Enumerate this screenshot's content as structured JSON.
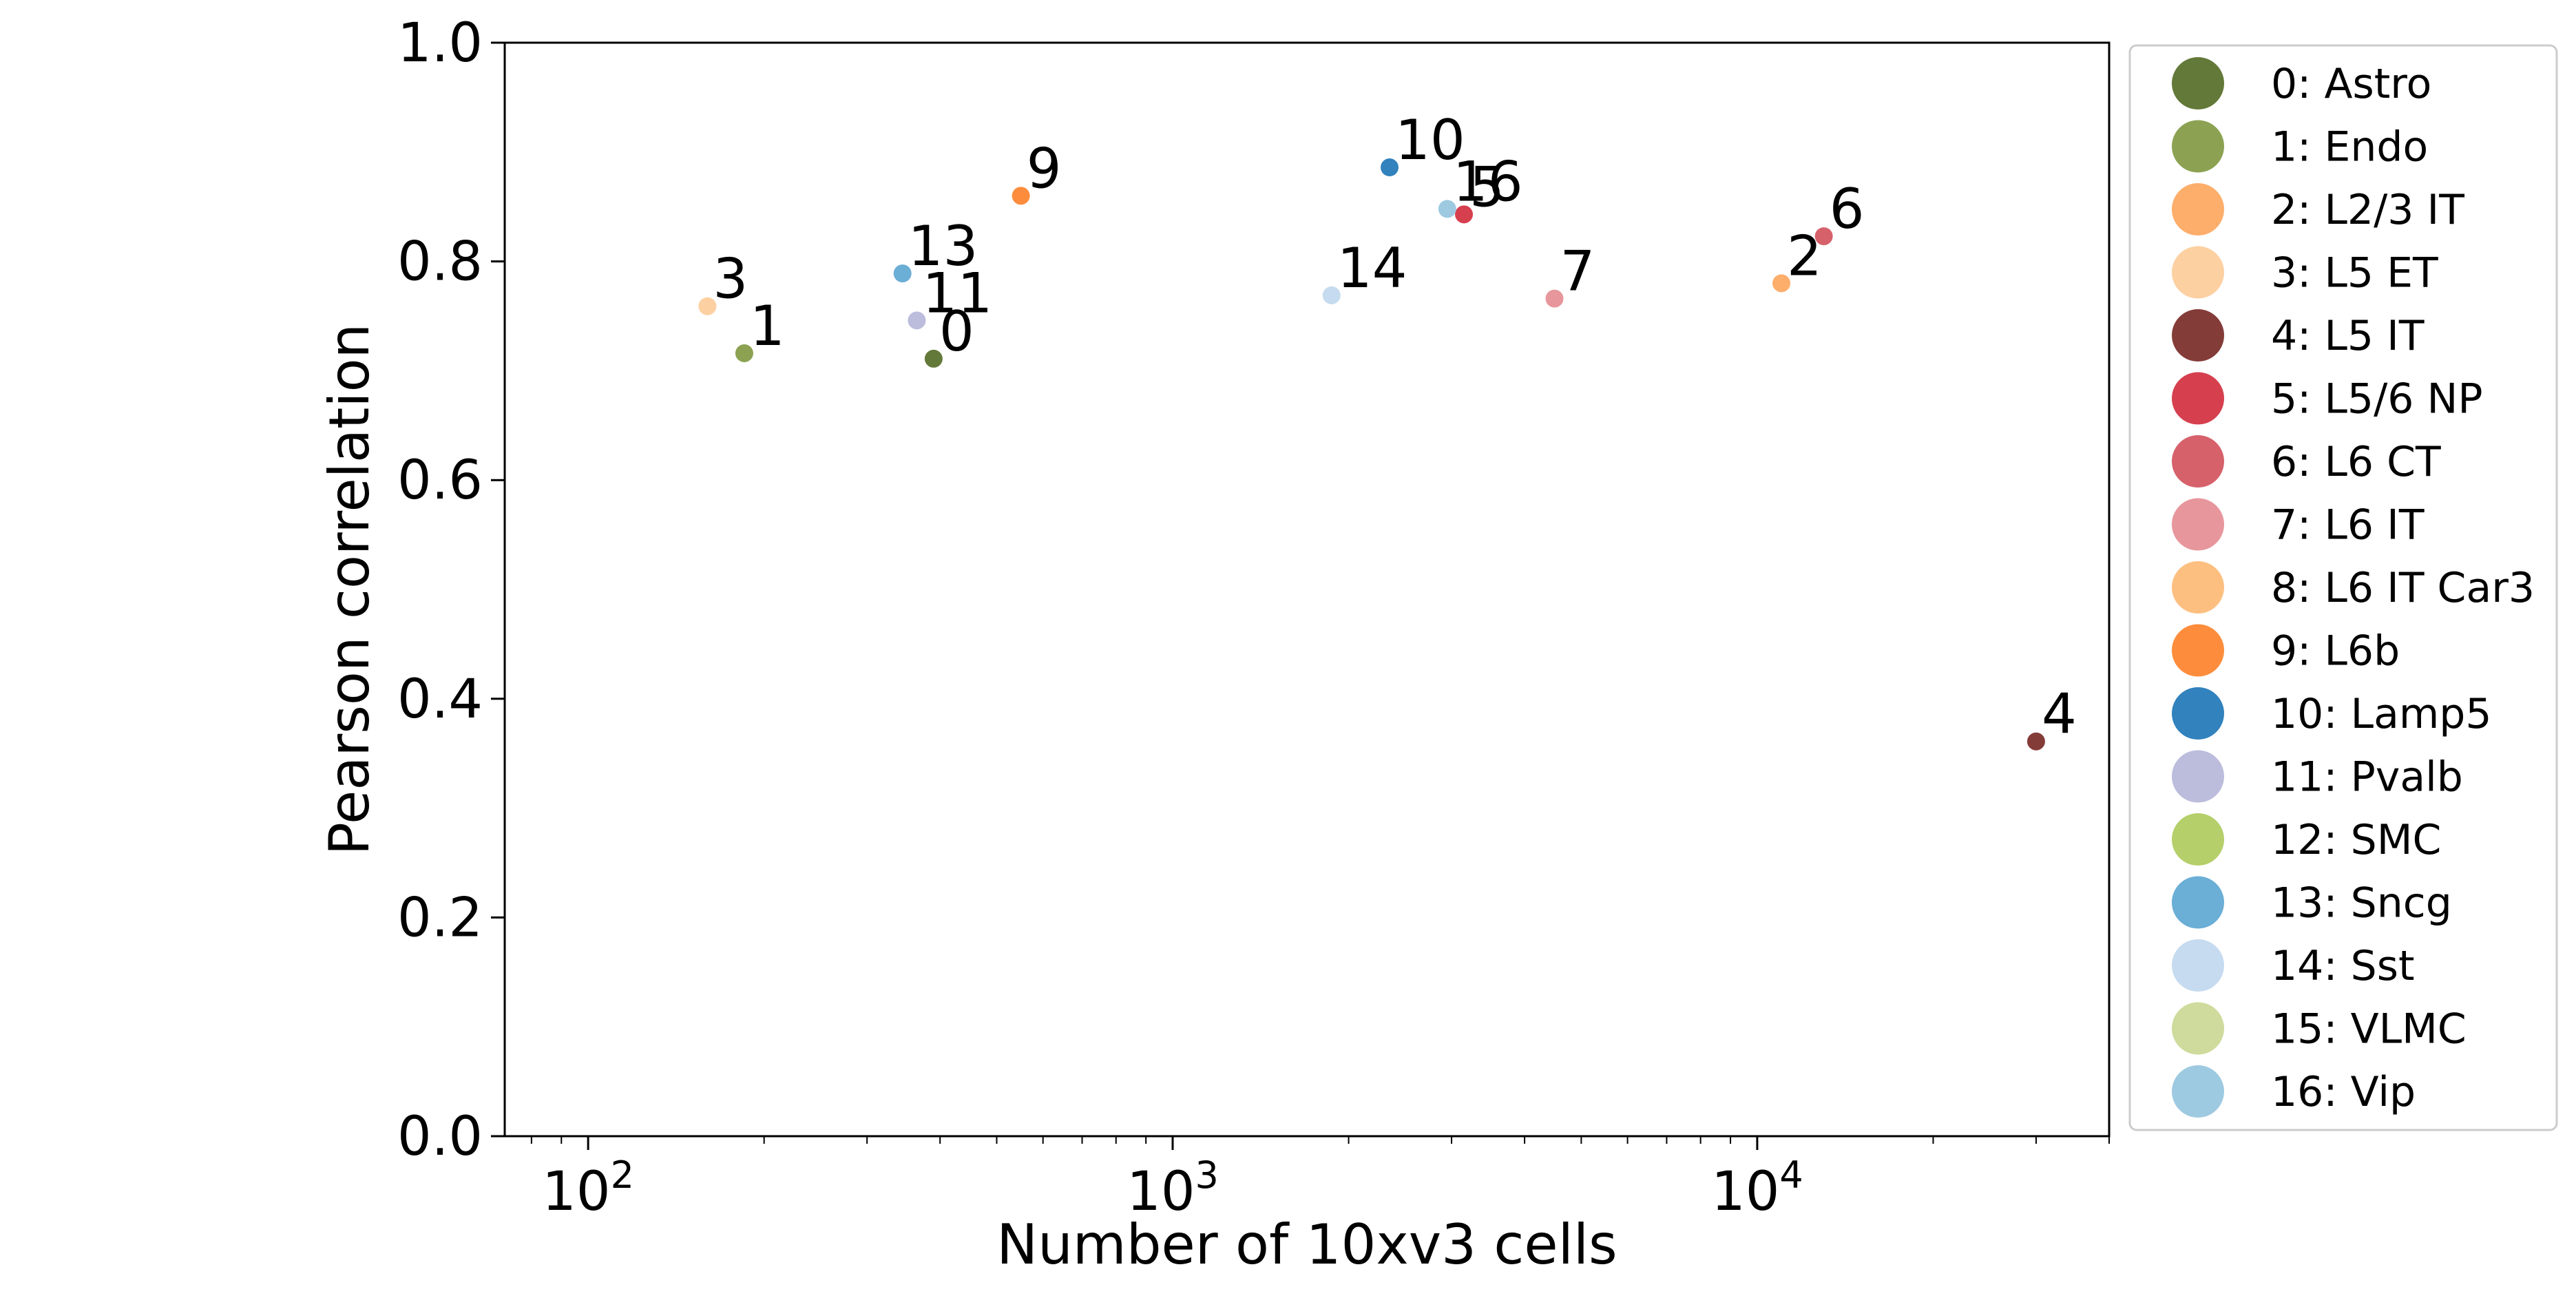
{
  "chart_data": {
    "type": "scatter",
    "xlabel": "Number of 10xv3 cells",
    "ylabel": "Pearson correlation",
    "x_scale": "log",
    "xlim": [
      72,
      40000
    ],
    "ylim": [
      0.0,
      1.0
    ],
    "x_ticks": [
      {
        "value": 100,
        "base": "10",
        "exp": "2"
      },
      {
        "value": 1000,
        "base": "10",
        "exp": "3"
      },
      {
        "value": 10000,
        "base": "10",
        "exp": "4"
      }
    ],
    "y_ticks": [
      {
        "value": 0.0,
        "label": "0.0"
      },
      {
        "value": 0.2,
        "label": "0.2"
      },
      {
        "value": 0.4,
        "label": "0.4"
      },
      {
        "value": 0.6,
        "label": "0.6"
      },
      {
        "value": 0.8,
        "label": "0.8"
      },
      {
        "value": 1.0,
        "label": "1.0"
      }
    ],
    "grid": false,
    "legend_position": "outside-right",
    "points": [
      {
        "label": "0",
        "x": 390,
        "y": 0.711,
        "color": "#637939"
      },
      {
        "label": "1",
        "x": 185,
        "y": 0.716,
        "color": "#8ca252"
      },
      {
        "label": "2",
        "x": 11000,
        "y": 0.78,
        "color": "#fdae6b"
      },
      {
        "label": "3",
        "x": 160,
        "y": 0.759,
        "color": "#fdd0a2"
      },
      {
        "label": "4",
        "x": 30000,
        "y": 0.361,
        "color": "#843c39"
      },
      {
        "label": "5",
        "x": 3150,
        "y": 0.843,
        "color": "#d6404e"
      },
      {
        "label": "6",
        "x": 13000,
        "y": 0.823,
        "color": "#d6616b"
      },
      {
        "label": "7",
        "x": 4500,
        "y": 0.766,
        "color": "#e7969c"
      },
      {
        "label": "9",
        "x": 550,
        "y": 0.86,
        "color": "#fd8d3c"
      },
      {
        "label": "10",
        "x": 2350,
        "y": 0.886,
        "color": "#3182bd"
      },
      {
        "label": "11",
        "x": 365,
        "y": 0.746,
        "color": "#bcbddc"
      },
      {
        "label": "13",
        "x": 345,
        "y": 0.789,
        "color": "#6baed6"
      },
      {
        "label": "14",
        "x": 1870,
        "y": 0.769,
        "color": "#c6dbef"
      },
      {
        "label": "16",
        "x": 2950,
        "y": 0.848,
        "color": "#9ecae1"
      }
    ],
    "legend": [
      {
        "label": "0: Astro",
        "color": "#637939"
      },
      {
        "label": "1: Endo",
        "color": "#8ca252"
      },
      {
        "label": "2: L2/3 IT",
        "color": "#fdae6b"
      },
      {
        "label": "3: L5 ET",
        "color": "#fdd0a2"
      },
      {
        "label": "4: L5 IT",
        "color": "#843c39"
      },
      {
        "label": "5: L5/6 NP",
        "color": "#d6404e"
      },
      {
        "label": "6: L6 CT",
        "color": "#d6616b"
      },
      {
        "label": "7: L6 IT",
        "color": "#e7969c"
      },
      {
        "label": "8: L6 IT Car3",
        "color": "#fdbf80"
      },
      {
        "label": "9: L6b",
        "color": "#fd8d3c"
      },
      {
        "label": "10: Lamp5",
        "color": "#3182bd"
      },
      {
        "label": "11: Pvalb",
        "color": "#bcbddc"
      },
      {
        "label": "12: SMC",
        "color": "#b5cf6b"
      },
      {
        "label": "13: Sncg",
        "color": "#6baed6"
      },
      {
        "label": "14: Sst",
        "color": "#c6dbef"
      },
      {
        "label": "15: VLMC",
        "color": "#cedb9c"
      },
      {
        "label": "16: Vip",
        "color": "#9ecae1"
      }
    ]
  }
}
